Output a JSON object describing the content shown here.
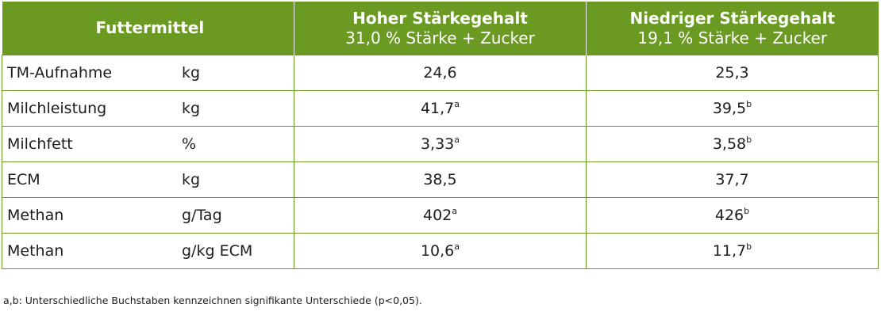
{
  "header": {
    "col1_title": "Futtermittel",
    "col2_title": "Hoher Stärkegehalt",
    "col2_sub": "31,0 % Stärke + Zucker",
    "col3_title": "Niedriger Stärkegehalt",
    "col3_sub": "19,1 % Stärke + Zucker"
  },
  "rows": [
    {
      "label": "TM-Aufnahme",
      "unit": "kg",
      "high": "24,6",
      "high_sup": "",
      "low": "25,3",
      "low_sup": ""
    },
    {
      "label": "Milchleistung",
      "unit": "kg",
      "high": "41,7",
      "high_sup": "a",
      "low": "39,5",
      "low_sup": "b"
    },
    {
      "label": "Milchfett",
      "unit": "%",
      "high": "3,33",
      "high_sup": "a",
      "low": "3,58",
      "low_sup": "b"
    },
    {
      "label": "ECM",
      "unit": "kg",
      "high": "38,5",
      "high_sup": "",
      "low": "37,7",
      "low_sup": ""
    },
    {
      "label": "Methan",
      "unit": "g/Tag",
      "high": "402",
      "high_sup": "a",
      "low": "426",
      "low_sup": "b"
    },
    {
      "label": "Methan",
      "unit": "g/kg ECM",
      "high": "10,6",
      "high_sup": "a",
      "low": "11,7",
      "low_sup": "b"
    }
  ],
  "footnote": "a,b: Unterschiedliche Buchstaben kennzeichnen signifikante Unterschiede (p<0,05).",
  "colors": {
    "header_bg": "#6b9a23",
    "border": "#6b9a23"
  }
}
